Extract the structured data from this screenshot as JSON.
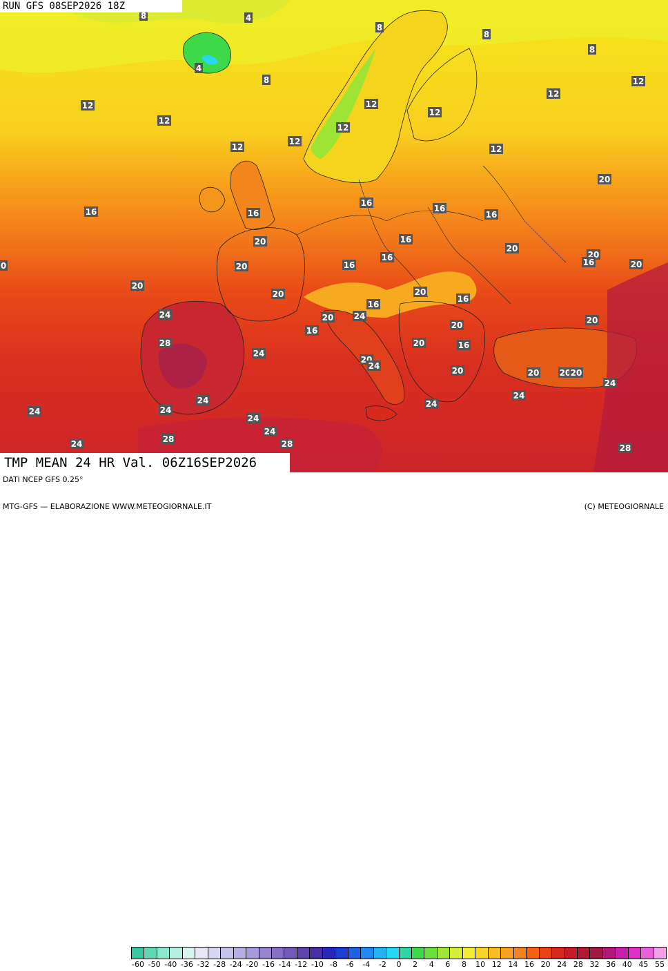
{
  "header": {
    "run_label": "RUN GFS 08SEP2026 18Z"
  },
  "title": {
    "text": "TMP MEAN 24 HR Val. 06Z16SEP2026"
  },
  "footer": {
    "source": "DATI NCEP GFS 0.25°",
    "producer": "MTG-GFS — ELABORAZIONE WWW.METEOGIORNALE.IT",
    "copyright": "(C) METEOGIORNALE"
  },
  "legend": {
    "colors": [
      "#36c9a0",
      "#5fd7b4",
      "#8ee6cf",
      "#b7f0e3",
      "#d8f5ef",
      "#e6e6f5",
      "#d6d6f0",
      "#c6c3ea",
      "#b7afe3",
      "#a79ad9",
      "#9785cf",
      "#8770c4",
      "#7459b9",
      "#5f44ae",
      "#4a2ea3",
      "#2a27b8",
      "#1d3fd0",
      "#1e63e3",
      "#1f8af0",
      "#22b4f5",
      "#26d8f4",
      "#2bd7a4",
      "#3dd94a",
      "#6be03a",
      "#a3e637",
      "#d6ee35",
      "#f3ee30",
      "#f7d529",
      "#f8bc24",
      "#f8a01f",
      "#f5821b",
      "#f16218",
      "#e84317",
      "#d82a1c",
      "#c41c28",
      "#b01834",
      "#a01a44",
      "#b21878",
      "#c820a8",
      "#dc30c8",
      "#ea60d8",
      "#f3a0e8"
    ],
    "tick_labels": [
      "-60",
      "-50",
      "-40",
      "-36",
      "-32",
      "-28",
      "-24",
      "-20",
      "-16",
      "-14",
      "-12",
      "-10",
      "-8",
      "-6",
      "-4",
      "-2",
      "0",
      "2",
      "4",
      "6",
      "8",
      "10",
      "12",
      "14",
      "16",
      "20",
      "24",
      "28",
      "32",
      "36",
      "40",
      "45",
      "55"
    ]
  },
  "isotherm_labels": [
    "8",
    "4",
    "4",
    "8",
    "8",
    "8",
    "12",
    "12",
    "12",
    "12",
    "12",
    "12",
    "12",
    "12",
    "12",
    "12",
    "16",
    "16",
    "16",
    "16",
    "16",
    "16",
    "16",
    "16",
    "16",
    "16",
    "16",
    "16",
    "20",
    "20",
    "20",
    "20",
    "20",
    "20",
    "20",
    "20",
    "20",
    "20",
    "20",
    "20",
    "20",
    "20",
    "20",
    "20",
    "20",
    "20",
    "24",
    "24",
    "24",
    "24",
    "24",
    "24",
    "24",
    "24",
    "24",
    "24",
    "24",
    "24",
    "24",
    "28",
    "28",
    "28",
    "28",
    "8",
    "16",
    "0"
  ],
  "icons": {
    "map": "europe-temperature-map"
  }
}
